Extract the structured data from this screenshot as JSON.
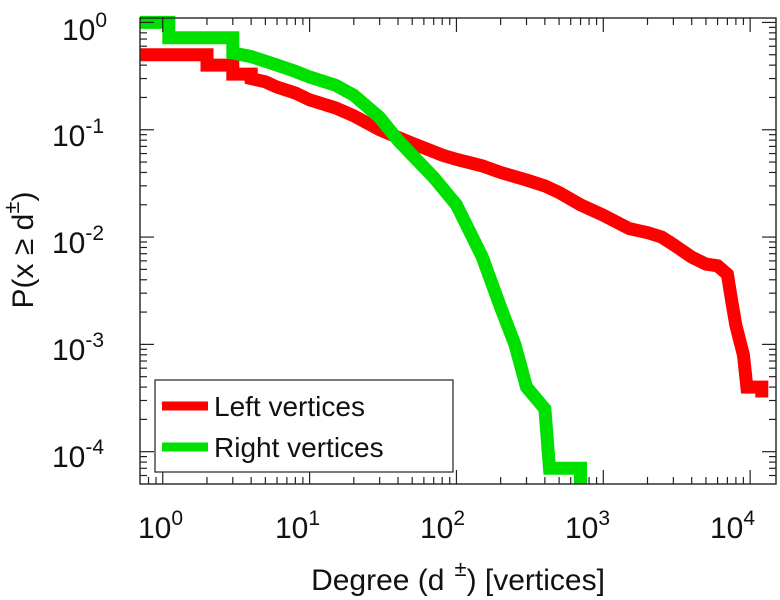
{
  "chart_data": {
    "type": "line",
    "title": "",
    "xscale": "log",
    "yscale": "log",
    "xlim": [
      0.7,
      15000
    ],
    "ylim": [
      5e-05,
      1.1
    ],
    "xticks": [
      {
        "base": "10",
        "exp": "0",
        "value": 1
      },
      {
        "base": "10",
        "exp": "1",
        "value": 10
      },
      {
        "base": "10",
        "exp": "2",
        "value": 100
      },
      {
        "base": "10",
        "exp": "3",
        "value": 1000
      },
      {
        "base": "10",
        "exp": "4",
        "value": 10000
      }
    ],
    "yticks": [
      {
        "base": "10",
        "exp": "0",
        "value": 1
      },
      {
        "base": "10",
        "exp": "-1",
        "value": 0.1
      },
      {
        "base": "10",
        "exp": "-2",
        "value": 0.01
      },
      {
        "base": "10",
        "exp": "-3",
        "value": 0.001
      },
      {
        "base": "10",
        "exp": "-4",
        "value": 0.0001
      }
    ],
    "xlabel": {
      "pre": "Degree (d",
      "sup": "±",
      "post": ") [vertices]"
    },
    "ylabel": {
      "pre": "P(x ≥ d",
      "sup": "±",
      "post": ")"
    },
    "legend": {
      "placement": "bottom-left",
      "entries": [
        {
          "label": "Left vertices",
          "color": "#ff0000"
        },
        {
          "label": "Right vertices",
          "color": "#00e000"
        }
      ]
    },
    "series": [
      {
        "name": "Left vertices",
        "color": "#ff0000",
        "points": [
          [
            0.7,
            0.5
          ],
          [
            2,
            0.5
          ],
          [
            2,
            0.4
          ],
          [
            3,
            0.4
          ],
          [
            3,
            0.33
          ],
          [
            4,
            0.33
          ],
          [
            4,
            0.3
          ],
          [
            5,
            0.28
          ],
          [
            6,
            0.25
          ],
          [
            8,
            0.22
          ],
          [
            10,
            0.19
          ],
          [
            15,
            0.16
          ],
          [
            20,
            0.135
          ],
          [
            30,
            0.1
          ],
          [
            50,
            0.075
          ],
          [
            80,
            0.058
          ],
          [
            100,
            0.053
          ],
          [
            150,
            0.046
          ],
          [
            200,
            0.04
          ],
          [
            300,
            0.034
          ],
          [
            400,
            0.03
          ],
          [
            500,
            0.026
          ],
          [
            700,
            0.02
          ],
          [
            1000,
            0.016
          ],
          [
            1500,
            0.012
          ],
          [
            2000,
            0.011
          ],
          [
            2500,
            0.01
          ],
          [
            3000,
            0.0085
          ],
          [
            4000,
            0.0065
          ],
          [
            5000,
            0.0056
          ],
          [
            6000,
            0.0054
          ],
          [
            7000,
            0.0045
          ],
          [
            7500,
            0.0025
          ],
          [
            8000,
            0.0015
          ],
          [
            9000,
            0.0008
          ],
          [
            9500,
            0.0004
          ],
          [
            12000,
            0.0004
          ],
          [
            12000,
            0.00032
          ]
        ]
      },
      {
        "name": "Right vertices",
        "color": "#00e000",
        "points": [
          [
            0.7,
            1.0
          ],
          [
            1.1,
            1.0
          ],
          [
            1.1,
            0.72
          ],
          [
            3,
            0.72
          ],
          [
            3,
            0.52
          ],
          [
            4,
            0.48
          ],
          [
            6,
            0.4
          ],
          [
            8,
            0.35
          ],
          [
            10,
            0.31
          ],
          [
            15,
            0.26
          ],
          [
            20,
            0.21
          ],
          [
            30,
            0.13
          ],
          [
            40,
            0.08
          ],
          [
            50,
            0.058
          ],
          [
            70,
            0.036
          ],
          [
            100,
            0.02
          ],
          [
            150,
            0.0065
          ],
          [
            200,
            0.0022
          ],
          [
            250,
            0.001
          ],
          [
            300,
            0.0004
          ],
          [
            400,
            0.00025
          ],
          [
            430,
            7e-05
          ],
          [
            700,
            7e-05
          ],
          [
            700,
            5e-05
          ]
        ]
      }
    ]
  }
}
